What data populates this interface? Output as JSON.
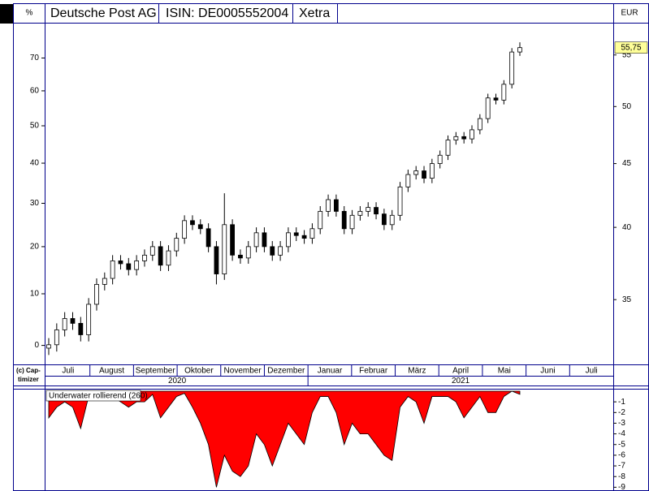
{
  "chart_data": [
    {
      "type": "candlestick",
      "header_cells": [
        "%",
        "Deutsche Post AG",
        "ISIN: DE0005552004",
        "Xetra",
        "EUR"
      ],
      "copyright": [
        "(c) Cap-",
        "timizer"
      ],
      "categories": [
        "Juli",
        "August",
        "September",
        "Oktober",
        "November",
        "Dezember",
        "Januar",
        "Februar",
        "März",
        "April",
        "Mai",
        "Juni",
        "Juli"
      ],
      "years": [
        "2020",
        "2021"
      ],
      "open": [
        32.0,
        32.2,
        33.1,
        33.8,
        33.5,
        32.8,
        34.7,
        36.0,
        36.4,
        37.6,
        37.4,
        37.0,
        37.6,
        38.0,
        38.6,
        37.3,
        38.3,
        39.2,
        40.5,
        40.2,
        39.9,
        38.6,
        36.7,
        40.2,
        38.0,
        37.8,
        38.6,
        39.6,
        38.6,
        38.0,
        38.6,
        39.6,
        39.4,
        39.2,
        39.9,
        41.2,
        42.1,
        41.2,
        39.9,
        40.9,
        41.2,
        41.5,
        41.0,
        40.2,
        40.9,
        43.1,
        44.1,
        44.4,
        43.8,
        45.0,
        45.7,
        47.0,
        47.3,
        47.1,
        47.9,
        48.9,
        50.8,
        50.6,
        52.1,
        55.3
      ],
      "high": [
        32.6,
        33.5,
        34.2,
        34.2,
        33.9,
        35.1,
        36.4,
        36.8,
        38.0,
        38.0,
        37.8,
        38.0,
        38.4,
        39.0,
        39.0,
        38.7,
        39.6,
        40.9,
        40.9,
        40.6,
        40.3,
        39.0,
        42.6,
        40.6,
        38.4,
        39.0,
        40.0,
        40.0,
        39.0,
        39.0,
        40.0,
        40.0,
        39.8,
        40.3,
        41.6,
        42.5,
        42.5,
        41.6,
        41.3,
        41.6,
        41.9,
        41.9,
        41.4,
        41.3,
        43.5,
        44.5,
        44.8,
        44.8,
        45.4,
        46.1,
        47.4,
        47.7,
        47.7,
        48.3,
        49.3,
        51.2,
        51.2,
        52.5,
        55.7,
        56.3
      ],
      "low": [
        31.6,
        31.8,
        32.7,
        33.1,
        32.4,
        32.4,
        34.3,
        35.6,
        36.0,
        37.0,
        36.6,
        36.6,
        37.2,
        37.6,
        36.9,
        36.9,
        37.9,
        38.8,
        39.8,
        39.5,
        38.2,
        36.0,
        36.3,
        37.6,
        37.4,
        37.4,
        38.2,
        38.2,
        37.6,
        37.6,
        38.2,
        39.0,
        38.8,
        38.8,
        39.5,
        40.8,
        40.8,
        39.5,
        39.5,
        40.5,
        40.8,
        40.6,
        39.8,
        39.8,
        40.5,
        42.7,
        43.7,
        43.4,
        43.4,
        44.6,
        45.3,
        46.6,
        46.7,
        46.7,
        47.5,
        48.5,
        50.2,
        50.2,
        51.7,
        54.9
      ],
      "close": [
        32.2,
        33.1,
        33.8,
        33.5,
        32.8,
        34.7,
        36.0,
        36.4,
        37.6,
        37.4,
        37.0,
        37.6,
        38.0,
        38.6,
        37.3,
        38.3,
        39.2,
        40.5,
        40.2,
        39.9,
        38.6,
        36.7,
        40.2,
        38.0,
        37.8,
        38.6,
        39.6,
        38.6,
        38.0,
        38.6,
        39.6,
        39.4,
        39.2,
        39.9,
        41.2,
        42.1,
        41.2,
        39.9,
        40.9,
        41.2,
        41.5,
        41.0,
        40.2,
        40.9,
        43.1,
        44.1,
        44.4,
        43.8,
        45.0,
        45.7,
        47.0,
        47.3,
        47.1,
        47.9,
        48.9,
        50.8,
        50.6,
        52.1,
        55.3,
        55.75
      ],
      "last_label": {
        "value": 55.75,
        "label": "55,75"
      },
      "up_color": "#ffffff",
      "down_color": "#000000",
      "last_label_color": "#ffff99",
      "log_scale": true,
      "ylim": [
        31.1,
        58.2
      ],
      "yticks": [
        35,
        40,
        45,
        50,
        55
      ],
      "y2lim": [
        -3.3,
        80.9
      ],
      "y2ticks": [
        0,
        10,
        20,
        30,
        40,
        50,
        60,
        70
      ]
    },
    {
      "type": "area",
      "title": "Underwater rollierend (260)",
      "color": "#ff0000",
      "values": [
        -2.5,
        -1.5,
        -1,
        -1.5,
        -3.5,
        -0.5,
        -0.5,
        -0.3,
        -0.5,
        -1,
        -1.5,
        -1,
        -1,
        -0.3,
        -2.5,
        -1.5,
        -0.5,
        -0.2,
        -1.5,
        -3,
        -5,
        -9,
        -6,
        -7.5,
        -8,
        -7,
        -4,
        -5,
        -7,
        -5,
        -3,
        -4,
        -5,
        -2,
        -0.5,
        -0.5,
        -2,
        -5,
        -3,
        -4,
        -4,
        -5,
        -6,
        -6.5,
        -1.5,
        -0.5,
        -1,
        -3,
        -0.5,
        -0.5,
        -0.5,
        -1,
        -2.5,
        -1.5,
        -0.5,
        -2,
        -2,
        -0.5,
        0,
        -0.3
      ],
      "ylim": [
        -9.2,
        0
      ],
      "yticks": [
        -1,
        -2,
        -3,
        -4,
        -5,
        -6,
        -7,
        -8,
        -9
      ]
    }
  ]
}
